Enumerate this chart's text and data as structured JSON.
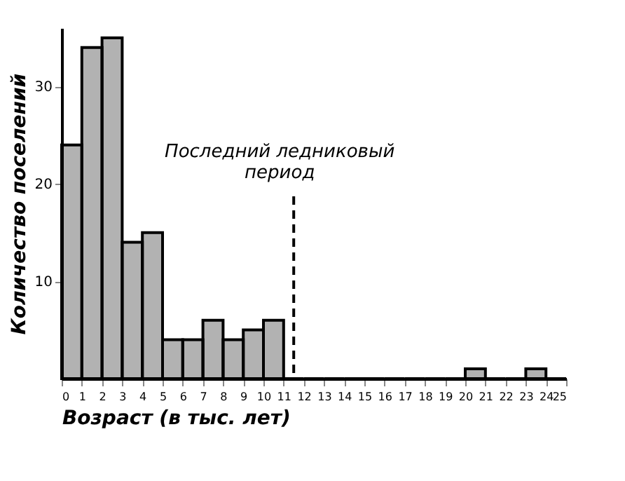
{
  "chart_data": {
    "type": "histogram",
    "xlabel": "Возраст (в тыс. лет)",
    "ylabel": "Количество поселений",
    "bins": [
      0,
      1,
      2,
      3,
      4,
      5,
      6,
      7,
      8,
      9,
      10,
      11,
      12,
      13,
      14,
      15,
      16,
      17,
      18,
      19,
      20,
      21,
      22,
      23,
      24,
      25
    ],
    "values": [
      24,
      34,
      35,
      14,
      15,
      4,
      4,
      6,
      4,
      5,
      6,
      0,
      0,
      0,
      0,
      0,
      0,
      0,
      0,
      0,
      1,
      0,
      0,
      1,
      0
    ],
    "color": "#000000",
    "xlim": [
      0,
      25
    ],
    "xticks": [
      0,
      1,
      2,
      3,
      4,
      5,
      6,
      7,
      8,
      9,
      10,
      11,
      12,
      13,
      14,
      15,
      16,
      17,
      18,
      19,
      20,
      21,
      22,
      23,
      24,
      25
    ],
    "ylim": [
      0,
      36
    ],
    "yticks": [
      10,
      20,
      30
    ],
    "ref_lines": [
      {
        "axis": "x",
        "value": 11.5,
        "label": "Последний ледниковый\nпериод",
        "line_style": "dashed"
      }
    ],
    "grid": false
  }
}
